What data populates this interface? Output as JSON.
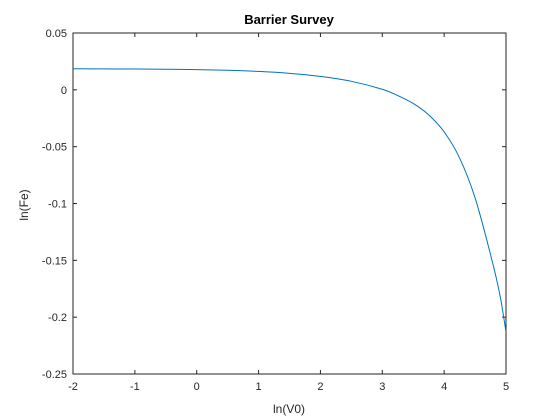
{
  "chart_data": {
    "type": "line",
    "title": "Barrier Survey",
    "xlabel": "ln(V0)",
    "ylabel": "ln(Fe)",
    "xlim": [
      -2,
      5
    ],
    "ylim": [
      -0.25,
      0.05
    ],
    "xticks": [
      -2,
      -1,
      0,
      1,
      2,
      3,
      4,
      5
    ],
    "yticks": [
      0.05,
      0,
      -0.05,
      -0.1,
      -0.15,
      -0.2,
      -0.25
    ],
    "xtick_labels": [
      "-2",
      "-1",
      "0",
      "1",
      "2",
      "3",
      "4",
      "5"
    ],
    "ytick_labels": [
      "0.05",
      "0",
      "-0.05",
      "-0.1",
      "-0.15",
      "-0.2",
      "-0.25"
    ],
    "grid": false,
    "box": true,
    "series": [
      {
        "color": "#0072BD",
        "x": [
          -2,
          -1.5,
          -1,
          -0.5,
          0,
          0.5,
          1,
          1.5,
          2,
          2.5,
          3,
          3.25,
          3.5,
          3.75,
          4,
          4.25,
          4.5,
          4.75,
          4.9,
          5
        ],
        "y": [
          0.0185,
          0.0184,
          0.0183,
          0.0181,
          0.0178,
          0.0172,
          0.0162,
          0.0145,
          0.0118,
          0.0075,
          0.0005,
          -0.005,
          -0.012,
          -0.022,
          -0.037,
          -0.06,
          -0.095,
          -0.145,
          -0.18,
          -0.213
        ]
      }
    ]
  }
}
